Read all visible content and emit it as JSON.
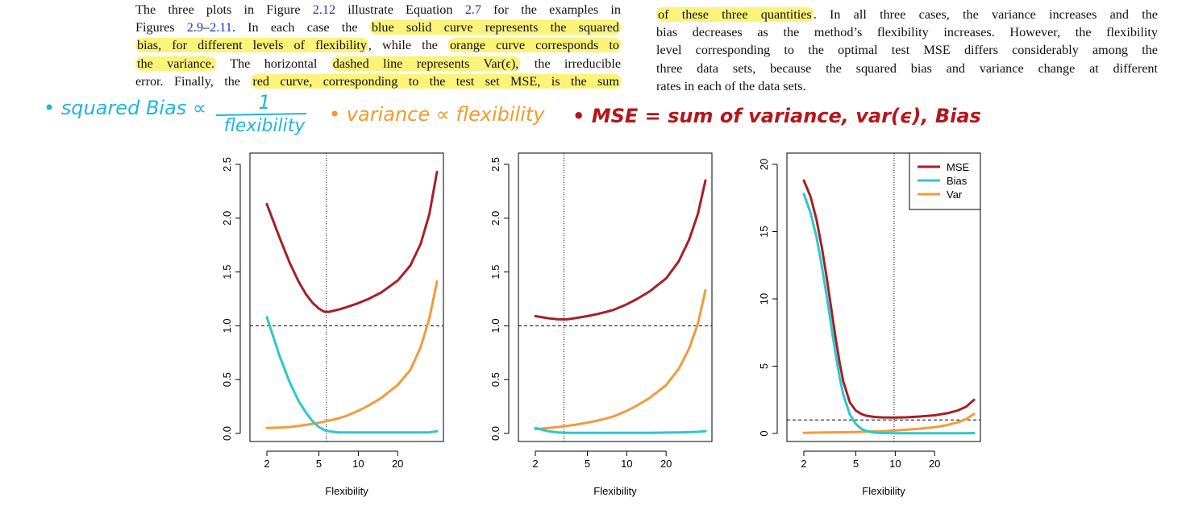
{
  "paragraph_left": {
    "lines": [
      [
        {
          "t": "The three plots in Figure "
        },
        {
          "t": "2.12",
          "ref": true
        },
        {
          "t": " illustrate Equation "
        },
        {
          "t": "2.7",
          "ref": true
        },
        {
          "t": " for the examples in"
        }
      ],
      [
        {
          "t": "Figures "
        },
        {
          "t": "2.9",
          "ref": true
        },
        {
          "t": "–"
        },
        {
          "t": "2.11",
          "ref": true
        },
        {
          "t": ". In each case the "
        },
        {
          "t": "blue solid curve represents the squared",
          "hl": true
        }
      ],
      [
        {
          "t": "bias, for different levels of flexibility",
          "hl": true
        },
        {
          "t": ", while the "
        },
        {
          "t": "orange curve corresponds to",
          "hl": true
        }
      ],
      [
        {
          "t": "the variance.",
          "hl": true
        },
        {
          "t": " The horizontal "
        },
        {
          "t": "dashed line represents Var(ϵ),",
          "hl": true
        },
        {
          "t": " the irreducible"
        }
      ],
      [
        {
          "t": "error. Finally, the "
        },
        {
          "t": "red curve, corresponding to the test set MSE, is the sum",
          "hl": true
        }
      ]
    ]
  },
  "paragraph_right": {
    "lines": [
      [
        {
          "t": "of these three quantities",
          "hl": true
        },
        {
          "t": ". In all three cases, the variance increases and the"
        }
      ],
      [
        {
          "t": "bias decreases as the method’s flexibility increases. However, the flexibility"
        }
      ],
      [
        {
          "t": "level corresponding to the optimal test MSE differs considerably among the"
        }
      ],
      [
        {
          "t": "three data sets, because the squared bias and variance change at different"
        }
      ],
      [
        {
          "t": "rates in each of the data sets."
        }
      ]
    ]
  },
  "annotations": {
    "bias_note": "• squared Bias ∝",
    "bias_num": "1",
    "bias_den": "flexibility",
    "variance_note": "• variance ∝ flexibility",
    "mse_note": "• MSE = sum of variance, var(ϵ), Bias",
    "colors": {
      "cyan": "#21b6dc",
      "orange": "#f39a2b",
      "red": "#b5161b"
    }
  },
  "chart_data": [
    {
      "type": "line",
      "xlabel": "Flexibility",
      "x_scale": "log",
      "xticks": [
        2,
        5,
        10,
        20
      ],
      "xlim": [
        2,
        40
      ],
      "yticks": [
        "0.0",
        "0.5",
        "1.0",
        "1.5",
        "2.0",
        "2.5"
      ],
      "ylim": [
        0,
        2.5
      ],
      "vline_x": 5.7,
      "hline_y": 1.0,
      "series": [
        {
          "name": "MSE",
          "color": "#a52126",
          "x": [
            2,
            2.5,
            3,
            3.5,
            4,
            4.5,
            5,
            5.5,
            6,
            7,
            8,
            10,
            12,
            15,
            20,
            25,
            30,
            35,
            40
          ],
          "y": [
            2.13,
            1.82,
            1.58,
            1.41,
            1.29,
            1.21,
            1.16,
            1.13,
            1.13,
            1.15,
            1.17,
            1.21,
            1.25,
            1.31,
            1.42,
            1.56,
            1.76,
            2.04,
            2.43
          ]
        },
        {
          "name": "Bias",
          "color": "#2cc8cd",
          "x": [
            2,
            2.5,
            3,
            3.5,
            4,
            4.5,
            5,
            5.5,
            6,
            7,
            8,
            10,
            12,
            15,
            20,
            25,
            30,
            35,
            40
          ],
          "y": [
            1.08,
            0.72,
            0.47,
            0.3,
            0.19,
            0.11,
            0.06,
            0.03,
            0.02,
            0.01,
            0.01,
            0.01,
            0.01,
            0.01,
            0.01,
            0.01,
            0.01,
            0.01,
            0.02
          ]
        },
        {
          "name": "Var",
          "color": "#f49a3c",
          "x": [
            2,
            2.5,
            3,
            3.5,
            4,
            4.5,
            5,
            5.5,
            6,
            7,
            8,
            10,
            12,
            15,
            20,
            25,
            30,
            35,
            40
          ],
          "y": [
            0.05,
            0.055,
            0.06,
            0.07,
            0.08,
            0.09,
            0.1,
            0.11,
            0.12,
            0.14,
            0.16,
            0.21,
            0.26,
            0.33,
            0.45,
            0.59,
            0.8,
            1.07,
            1.41
          ]
        }
      ]
    },
    {
      "type": "line",
      "xlabel": "Flexibility",
      "x_scale": "log",
      "xticks": [
        2,
        5,
        10,
        20
      ],
      "xlim": [
        2,
        40
      ],
      "yticks": [
        "0.0",
        "0.5",
        "1.0",
        "1.5",
        "2.0",
        "2.5"
      ],
      "ylim": [
        0,
        2.5
      ],
      "vline_x": 3.3,
      "hline_y": 1.0,
      "series": [
        {
          "name": "MSE",
          "color": "#a52126",
          "x": [
            2,
            2.5,
            3,
            3.5,
            4,
            5,
            6,
            7,
            8,
            10,
            12,
            15,
            20,
            25,
            30,
            35,
            40
          ],
          "y": [
            1.09,
            1.07,
            1.06,
            1.06,
            1.07,
            1.09,
            1.11,
            1.13,
            1.15,
            1.2,
            1.25,
            1.32,
            1.44,
            1.6,
            1.8,
            2.04,
            2.35
          ]
        },
        {
          "name": "Bias",
          "color": "#2cc8cd",
          "x": [
            2,
            2.5,
            3,
            3.5,
            4,
            5,
            6,
            7,
            8,
            10,
            12,
            15,
            20,
            25,
            30,
            35,
            40
          ],
          "y": [
            0.05,
            0.02,
            0.01,
            0.005,
            0.005,
            0.005,
            0.005,
            0.005,
            0.005,
            0.005,
            0.005,
            0.005,
            0.008,
            0.01,
            0.012,
            0.015,
            0.02
          ]
        },
        {
          "name": "Var",
          "color": "#f49a3c",
          "x": [
            2,
            2.5,
            3,
            3.5,
            4,
            5,
            6,
            7,
            8,
            10,
            12,
            15,
            20,
            25,
            30,
            35,
            40
          ],
          "y": [
            0.04,
            0.05,
            0.06,
            0.07,
            0.08,
            0.1,
            0.12,
            0.14,
            0.16,
            0.21,
            0.26,
            0.33,
            0.45,
            0.6,
            0.79,
            1.02,
            1.33
          ]
        }
      ]
    },
    {
      "type": "line",
      "xlabel": "Flexibility",
      "x_scale": "log",
      "xticks": [
        2,
        5,
        10,
        20
      ],
      "xlim": [
        2,
        40
      ],
      "yticks": [
        "0",
        "5",
        "10",
        "15",
        "20"
      ],
      "ylim": [
        0,
        20
      ],
      "vline_x": 9.8,
      "hline_y": 1.0,
      "legend": {
        "position": "top-right",
        "entries": [
          "MSE",
          "Bias",
          "Var"
        ]
      },
      "series": [
        {
          "name": "MSE",
          "color": "#a52126",
          "x": [
            2,
            2.25,
            2.5,
            2.75,
            3,
            3.25,
            3.5,
            3.75,
            4,
            4.5,
            5,
            5.5,
            6,
            7,
            8,
            10,
            12,
            15,
            20,
            25,
            30,
            35,
            40
          ],
          "y": [
            18.8,
            17.6,
            15.9,
            13.8,
            11.5,
            9.2,
            7.1,
            5.3,
            3.9,
            2.3,
            1.7,
            1.45,
            1.32,
            1.22,
            1.19,
            1.18,
            1.2,
            1.25,
            1.35,
            1.5,
            1.7,
            2.0,
            2.5
          ]
        },
        {
          "name": "Bias",
          "color": "#2cc8cd",
          "x": [
            2,
            2.25,
            2.5,
            2.75,
            3,
            3.25,
            3.5,
            3.75,
            4,
            4.5,
            5,
            5.5,
            6,
            7,
            8,
            10,
            12,
            15,
            20,
            25,
            30,
            35,
            40
          ],
          "y": [
            17.8,
            16.4,
            14.6,
            12.4,
            10.1,
            7.9,
            5.9,
            4.2,
            2.9,
            1.4,
            0.7,
            0.35,
            0.18,
            0.06,
            0.03,
            0.02,
            0.02,
            0.02,
            0.02,
            0.02,
            0.02,
            0.02,
            0.03
          ]
        },
        {
          "name": "Var",
          "color": "#f49a3c",
          "x": [
            2,
            3,
            4,
            5,
            6,
            8,
            10,
            12,
            15,
            20,
            25,
            30,
            35,
            40
          ],
          "y": [
            0.05,
            0.07,
            0.09,
            0.11,
            0.13,
            0.17,
            0.22,
            0.27,
            0.34,
            0.46,
            0.62,
            0.82,
            1.08,
            1.45
          ]
        }
      ]
    }
  ]
}
